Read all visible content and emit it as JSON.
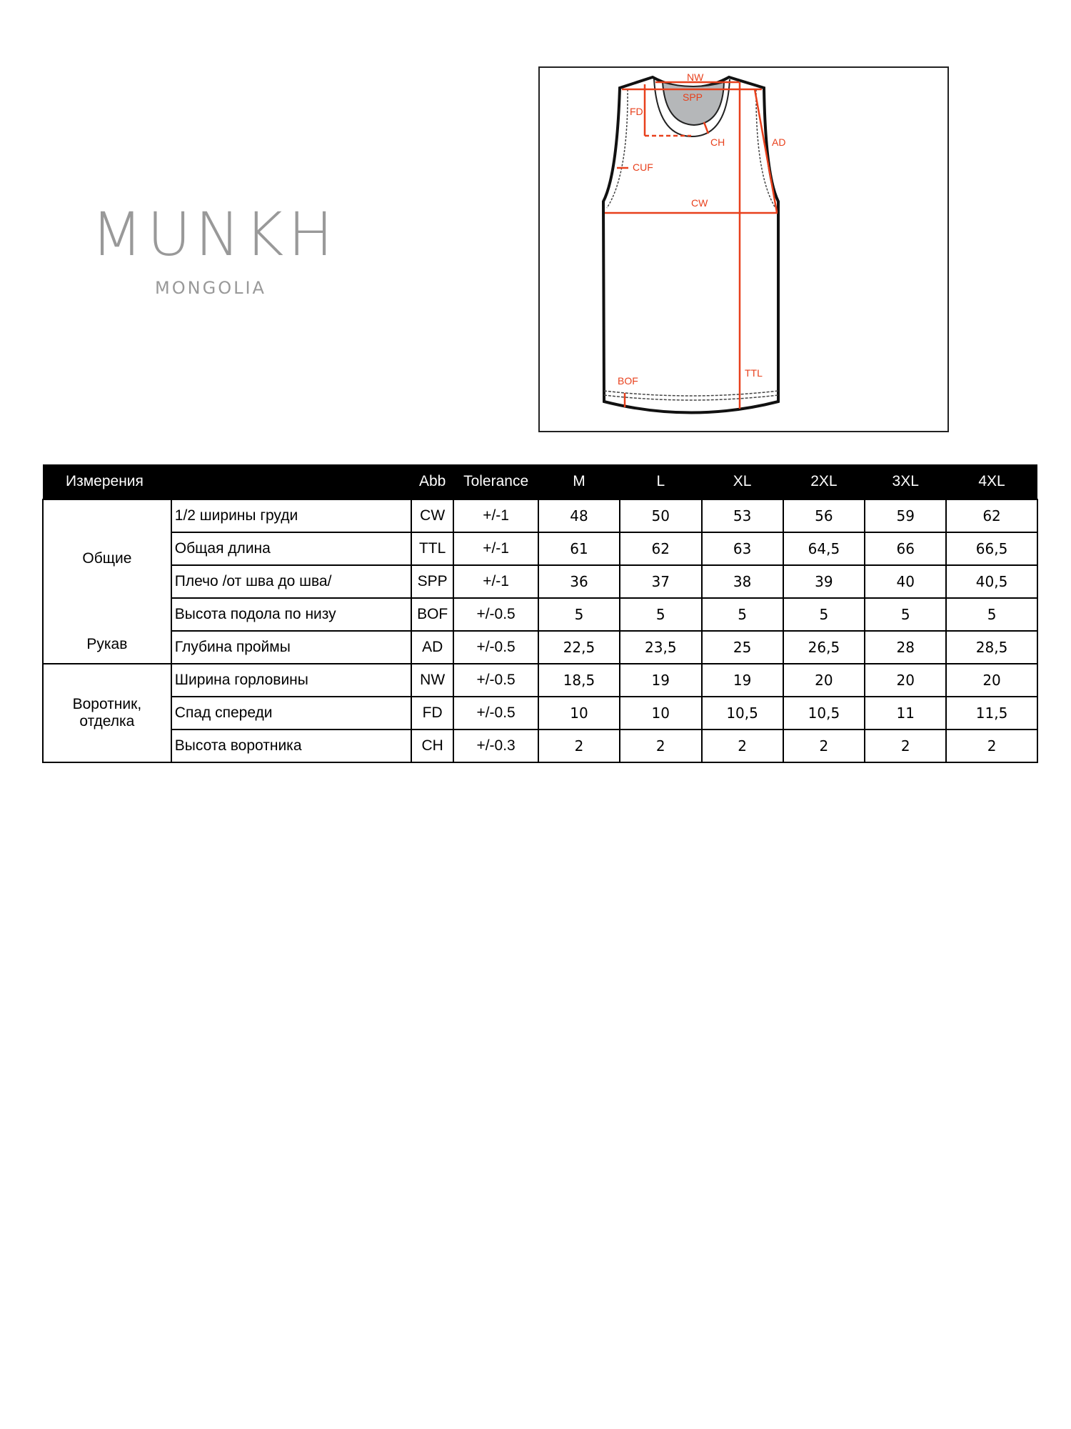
{
  "logo": {
    "brand": "MUNKH",
    "subtitle": "MONGOLIA"
  },
  "sketch": {
    "labels": {
      "nw": "NW",
      "spp": "SPP",
      "fd": "FD",
      "ch": "CH",
      "ad": "AD",
      "cuf": "CUF",
      "cw": "CW",
      "ttl": "TTL",
      "bof": "BOF"
    },
    "accent_color": "#e8401c"
  },
  "table": {
    "headers": {
      "measurement": "Измерения",
      "abb": "Abb",
      "tolerance": "Tolerance",
      "sizes": [
        "M",
        "L",
        "XL",
        "2XL",
        "3XL",
        "4XL"
      ]
    },
    "groups": [
      {
        "labels": [
          "Общие",
          "Рукав"
        ]
      },
      {
        "labels": [
          "Воротник,",
          "отделка"
        ]
      }
    ],
    "rows": [
      {
        "name": "1/2 ширины груди",
        "abb": "CW",
        "tol": "+/-1",
        "values": [
          "48",
          "50",
          "53",
          "56",
          "59",
          "62"
        ]
      },
      {
        "name": "Общая длина",
        "abb": "TTL",
        "tol": "+/-1",
        "values": [
          "61",
          "62",
          "63",
          "64,5",
          "66",
          "66,5"
        ]
      },
      {
        "name": "Плечо /от шва до шва/",
        "abb": "SPP",
        "tol": "+/-1",
        "values": [
          "36",
          "37",
          "38",
          "39",
          "40",
          "40,5"
        ]
      },
      {
        "name": "Высота подола по низу",
        "abb": "BOF",
        "tol": "+/-0.5",
        "values": [
          "5",
          "5",
          "5",
          "5",
          "5",
          "5"
        ]
      },
      {
        "name": "Глубина проймы",
        "abb": "AD",
        "tol": "+/-0.5",
        "values": [
          "22,5",
          "23,5",
          "25",
          "26,5",
          "28",
          "28,5"
        ]
      },
      {
        "name": "Ширина горловины",
        "abb": "NW",
        "tol": "+/-0.5",
        "values": [
          "18,5",
          "19",
          "19",
          "20",
          "20",
          "20"
        ]
      },
      {
        "name": "Спад спереди",
        "abb": "FD",
        "tol": "+/-0.5",
        "values": [
          "10",
          "10",
          "10,5",
          "10,5",
          "11",
          "11,5"
        ]
      },
      {
        "name": "Высота воротника",
        "abb": "CH",
        "tol": "+/-0.3",
        "values": [
          "2",
          "2",
          "2",
          "2",
          "2",
          "2"
        ]
      }
    ]
  }
}
